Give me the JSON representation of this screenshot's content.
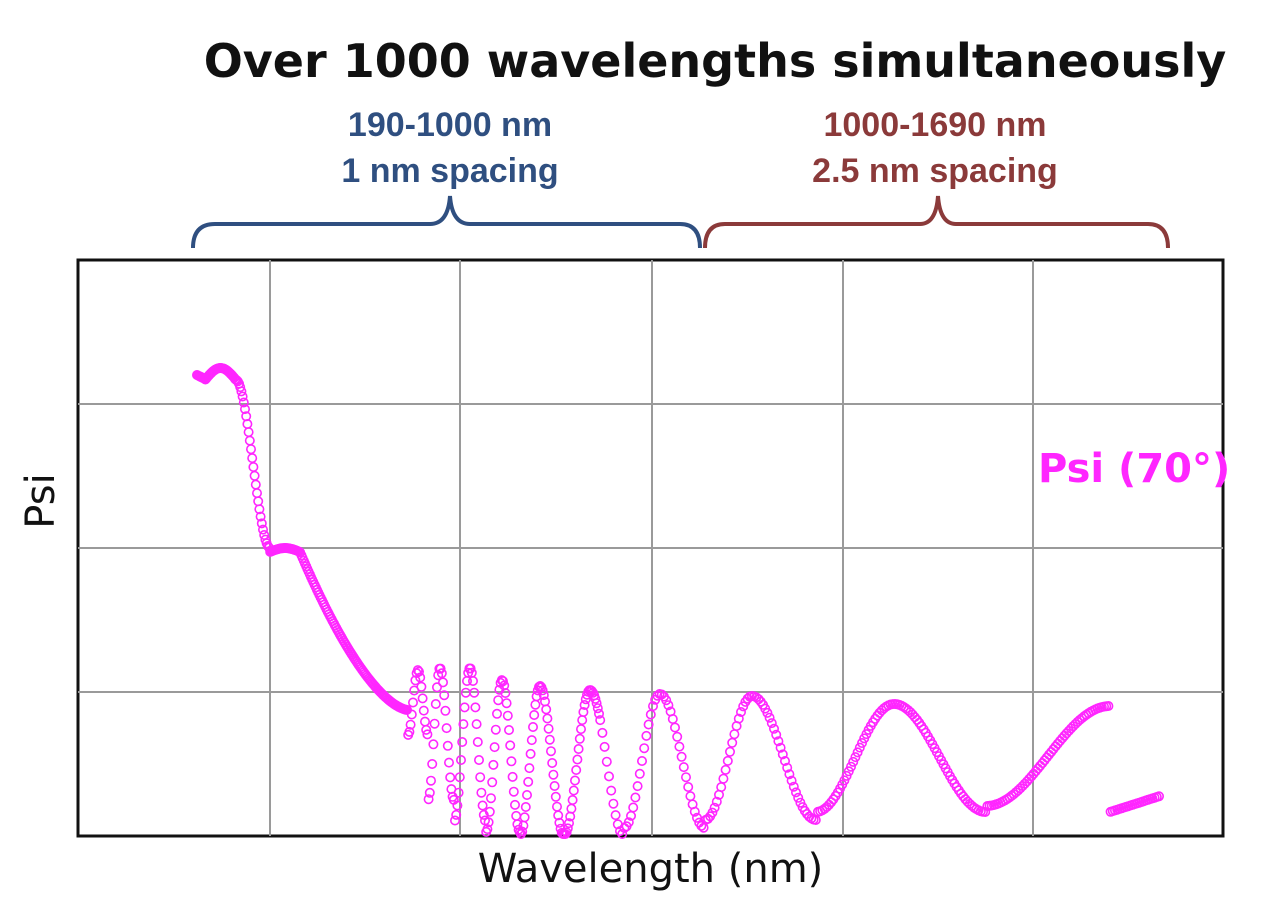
{
  "chart_data": {
    "type": "scatter",
    "title": "Over 1000 wavelengths simultaneously",
    "xlabel": "Wavelength (nm)",
    "ylabel": "Psi",
    "ranges": [
      {
        "line1": "190-1000 nm",
        "line2": "1 nm spacing",
        "color": "#2f4f80"
      },
      {
        "line1": "1000-1690 nm",
        "line2": "2.5 nm spacing",
        "color": "#8b3a3a"
      }
    ],
    "series": [
      {
        "name": "Psi (70°)",
        "color": "#ff26ff"
      }
    ],
    "grid": true,
    "ticks_shown": false
  }
}
